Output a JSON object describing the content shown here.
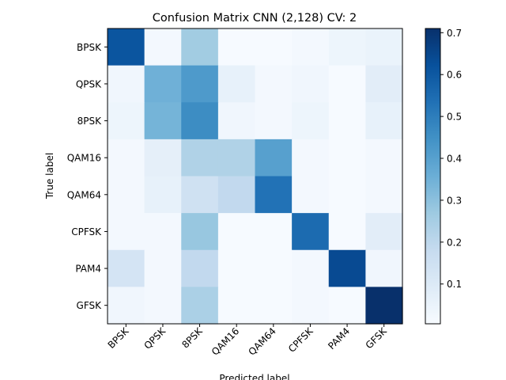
{
  "chart_data": {
    "type": "heatmap",
    "title": "Confusion Matrix CNN (2,128) CV: 2",
    "xlabel": "Predicted label",
    "ylabel": "True label",
    "x_categories": [
      "BPSK",
      "QPSK",
      "8PSK",
      "QAM16",
      "QAM64",
      "CPFSK",
      "PAM4",
      "GFSK"
    ],
    "y_categories": [
      "BPSK",
      "QPSK",
      "8PSK",
      "QAM16",
      "QAM64",
      "CPFSK",
      "PAM4",
      "GFSK"
    ],
    "values": [
      [
        0.61,
        0.02,
        0.26,
        0.01,
        0.01,
        0.02,
        0.04,
        0.05
      ],
      [
        0.03,
        0.35,
        0.42,
        0.06,
        0.02,
        0.03,
        0.01,
        0.08
      ],
      [
        0.04,
        0.34,
        0.46,
        0.03,
        0.02,
        0.04,
        0.01,
        0.06
      ],
      [
        0.02,
        0.07,
        0.23,
        0.23,
        0.4,
        0.02,
        0.01,
        0.02
      ],
      [
        0.02,
        0.06,
        0.15,
        0.19,
        0.53,
        0.02,
        0.01,
        0.02
      ],
      [
        0.02,
        0.02,
        0.28,
        0.01,
        0.01,
        0.55,
        0.01,
        0.08
      ],
      [
        0.13,
        0.02,
        0.19,
        0.01,
        0.01,
        0.02,
        0.64,
        0.03
      ],
      [
        0.03,
        0.02,
        0.24,
        0.01,
        0.01,
        0.02,
        0.01,
        0.71
      ]
    ],
    "value_range": [
      0.005,
      0.71
    ],
    "colormap": "Blues",
    "colorbar_ticks": [
      "0.1",
      "0.2",
      "0.3",
      "0.4",
      "0.5",
      "0.6",
      "0.7"
    ],
    "colorbar_tick_values": [
      0.1,
      0.2,
      0.3,
      0.4,
      0.5,
      0.6,
      0.7
    ],
    "colorbar_stops": [
      "#f7fbff",
      "#deebf7",
      "#c6dbef",
      "#9ecae1",
      "#6baed6",
      "#4292c6",
      "#2171b5",
      "#08519c",
      "#08306b"
    ]
  }
}
